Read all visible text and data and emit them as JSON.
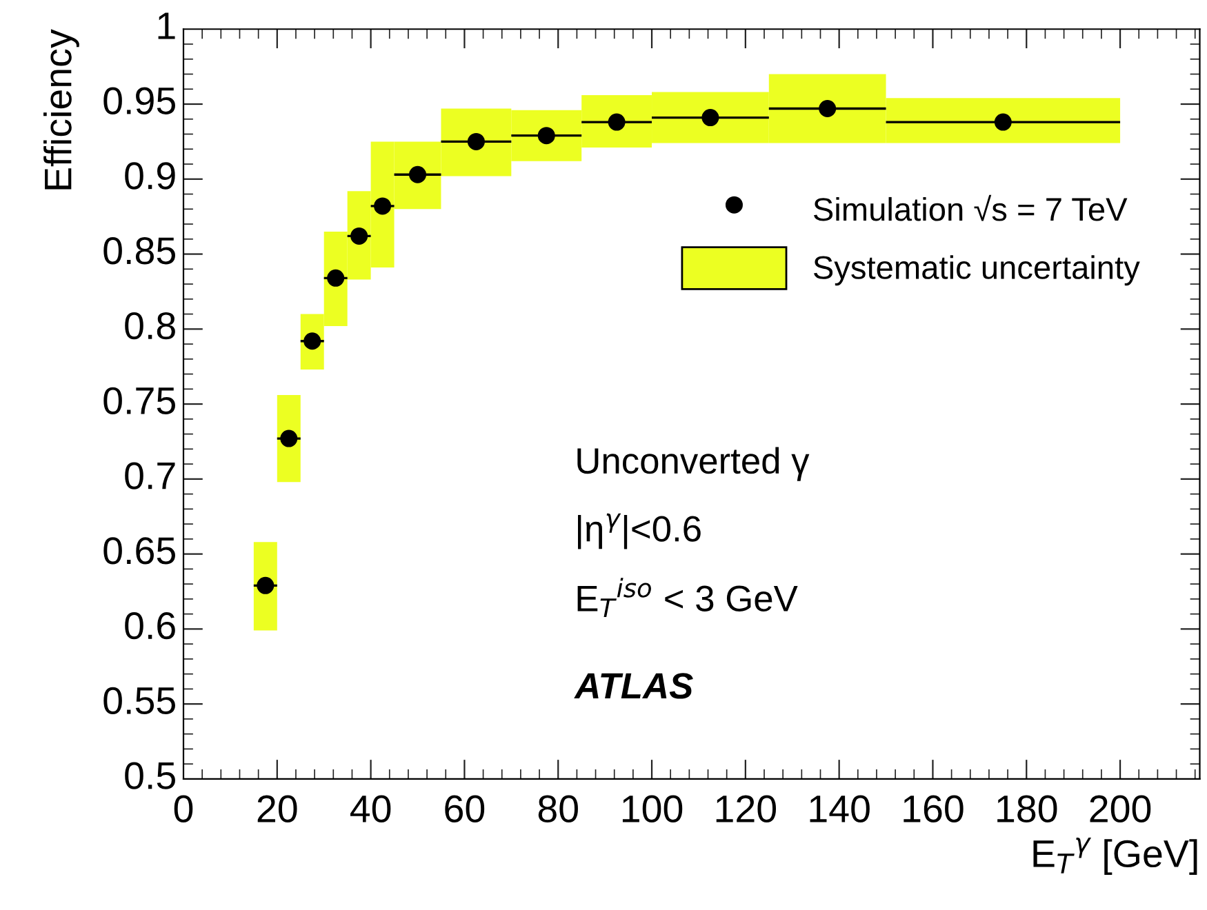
{
  "chart_data": {
    "type": "scatter",
    "ylabel": "Efficiency",
    "xlabel": "E$_{T}$$^{γ}$ [GeV]",
    "series": [
      {
        "type": "bar",
        "name": "Systematic uncertainty",
        "color": "#ecff22",
        "x": [
          17.5,
          22.5,
          27.5,
          32.5,
          37.5,
          42.5,
          50,
          62.5,
          77.5,
          92.5,
          112.5,
          137.5,
          175
        ],
        "base": [
          0.599,
          0.698,
          0.773,
          0.802,
          0.833,
          0.841,
          0.88,
          0.902,
          0.912,
          0.921,
          0.924,
          0.924,
          0.924
        ],
        "values": [
          0.059,
          0.058,
          0.037,
          0.063,
          0.059,
          0.084,
          0.045,
          0.045,
          0.034,
          0.035,
          0.034,
          0.046,
          0.03
        ]
      },
      {
        "name": "Simulation √s = 7 TeV",
        "color": "#000000",
        "x": [
          17.5,
          22.5,
          27.5,
          32.5,
          37.5,
          42.5,
          50,
          62.5,
          77.5,
          92.5,
          112.5,
          137.5,
          175
        ],
        "values": [
          0.629,
          0.727,
          0.792,
          0.834,
          0.862,
          0.882,
          0.903,
          0.925,
          0.929,
          0.938,
          0.941,
          0.947,
          0.938
        ],
        "xerrors": [
          2.5,
          2.5,
          2.5,
          2.5,
          2.5,
          2.5,
          5,
          7.5,
          7.5,
          7.5,
          12.5,
          12.5,
          25
        ]
      }
    ],
    "marker": "circle",
    "xlim": [
      0,
      217
    ],
    "xticks": [
      0,
      20,
      40,
      60,
      80,
      100,
      120,
      140,
      160,
      180,
      200
    ],
    "ylim": [
      0.5,
      1
    ],
    "yticks": [
      0.5,
      0.55,
      0.6,
      0.65,
      0.7,
      0.75,
      0.8,
      0.85,
      0.9,
      0.95,
      1
    ],
    "grid": false,
    "legend": "right",
    "annotations": [
      "Unconverted γ",
      "|η$^{γ}$|<0.6",
      "E$_{T}$$^{iso}$ < 3 GeV",
      "ATLAS"
    ]
  }
}
